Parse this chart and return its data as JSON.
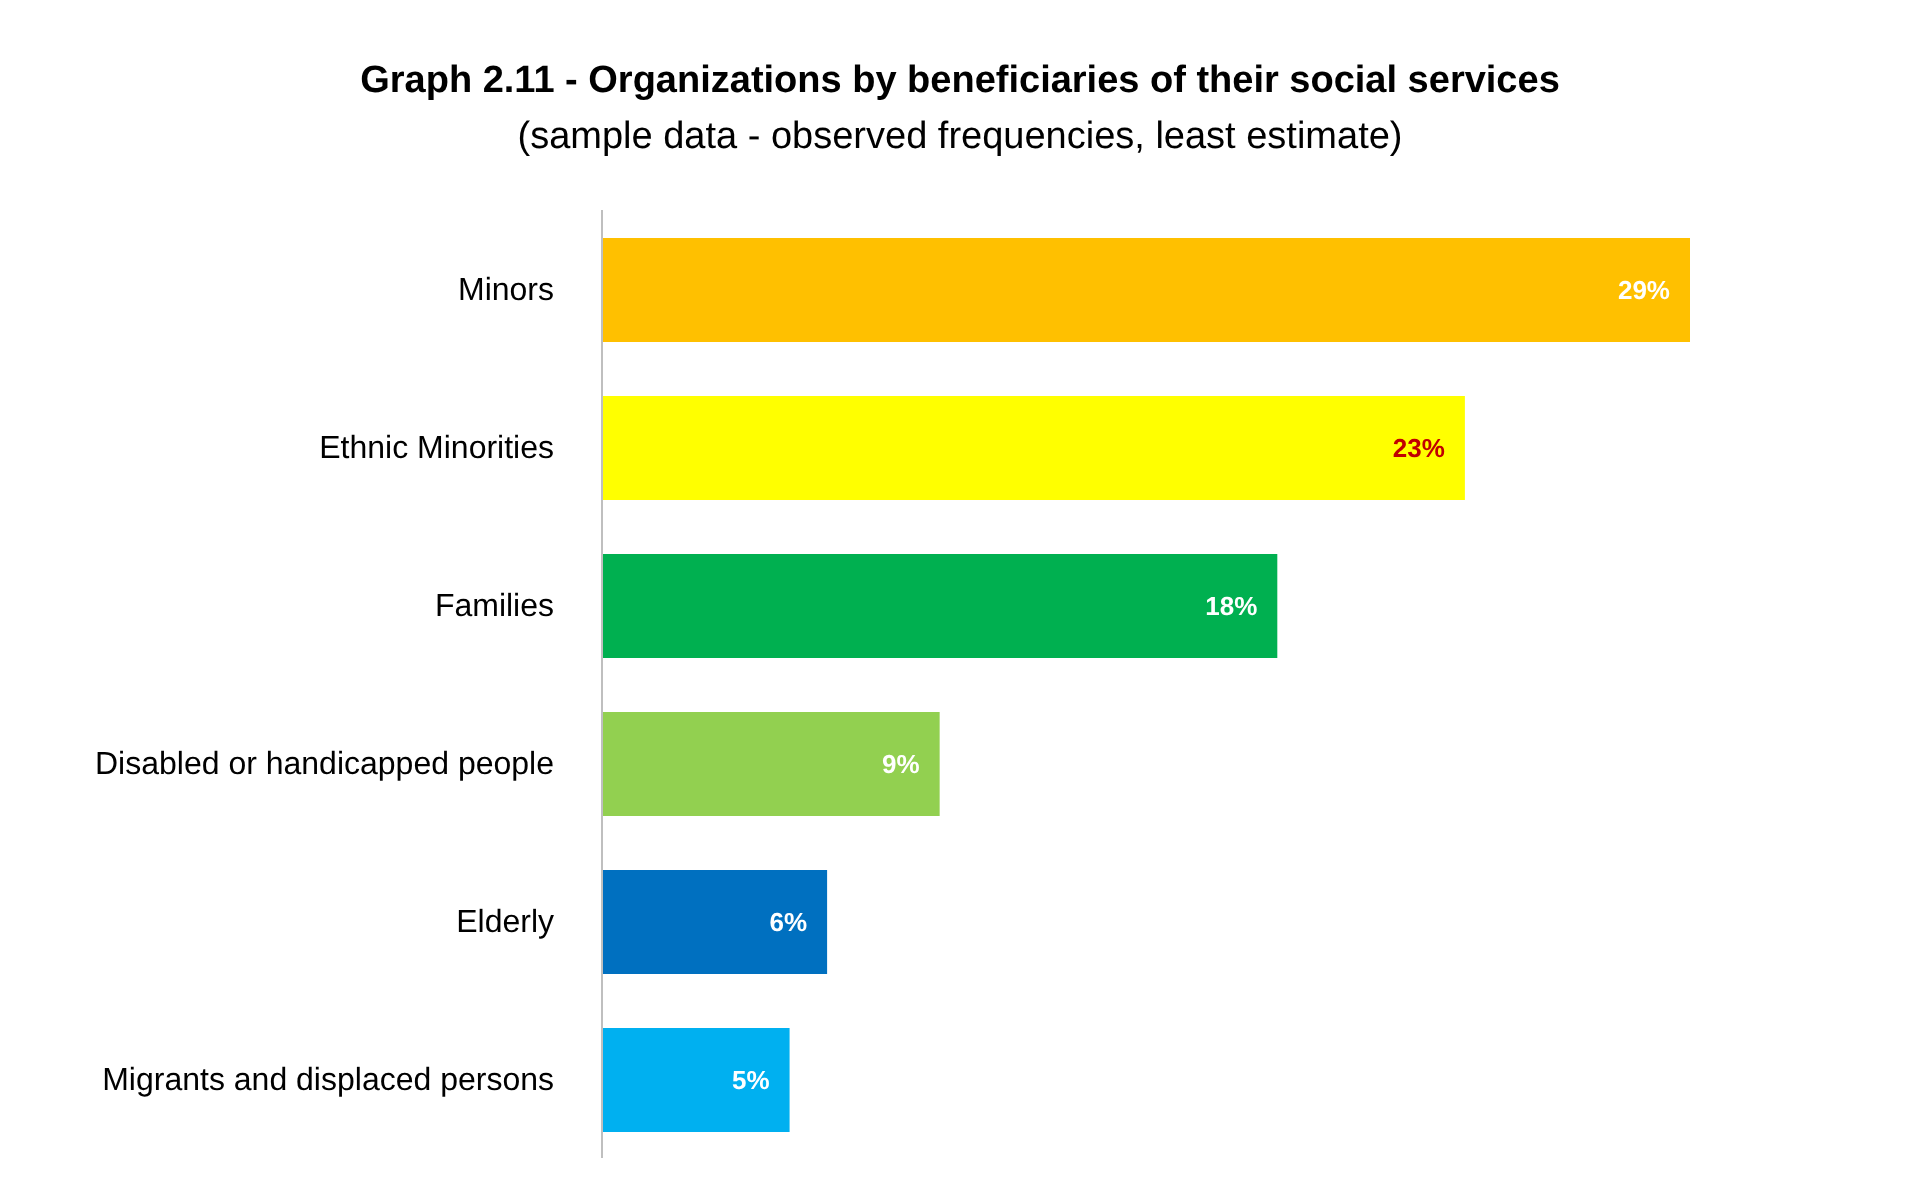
{
  "chart_data": {
    "type": "bar",
    "orientation": "horizontal",
    "title": "Graph 2.11 - Organizations by beneficiaries of their social services",
    "subtitle": "(sample data - observed frequencies, least estimate)",
    "categories": [
      "Minors",
      "Ethnic Minorities",
      "Families",
      "Disabled or handicapped people",
      "Elderly",
      "Migrants and displaced persons"
    ],
    "values": [
      29,
      23,
      18,
      9,
      6,
      5
    ],
    "colors": [
      "#ffc000",
      "#ffff00",
      "#00b050",
      "#92d050",
      "#0070c0",
      "#00b0f0"
    ],
    "value_labels": [
      "29%",
      "23%",
      "18%",
      "9%",
      "6%",
      "5%"
    ],
    "grid": false,
    "legend": false
  }
}
